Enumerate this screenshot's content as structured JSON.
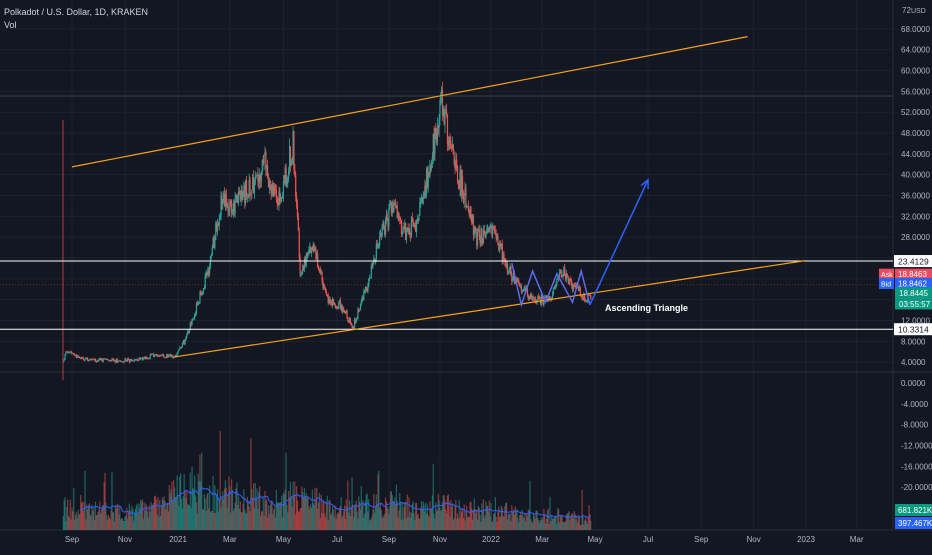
{
  "header": {
    "symbol_line": "Polkadot / U.S. Dollar, 1D, KRAKEN",
    "volume_label": "Vol"
  },
  "colors": {
    "background": "#131722",
    "grid": "#1e2230",
    "axis_text": "#b2b5be",
    "up": "#26a69a",
    "down": "#ef5350",
    "trendline": "#f7a21b",
    "projection": "#2962ff",
    "pattern": "#5b6cf0",
    "level_line": "#ffffff",
    "volume_ma": "#2962ff"
  },
  "chart_data": {
    "type": "candlestick",
    "currency": "USD",
    "price_axis": {
      "ticks": [
        "68.0000",
        "64.0000",
        "60.0000",
        "56.0000",
        "52.0000",
        "48.0000",
        "44.0000",
        "40.0000",
        "36.0000",
        "32.0000",
        "28.0000",
        "12.0000",
        "8.0000",
        "4.0000",
        "0.0000",
        "-4.0000",
        "-8.0000",
        "-12.0000",
        "-16.0000",
        "-20.0000"
      ],
      "top_label": "72",
      "currency_label": "USD",
      "ylim": [
        -24,
        72
      ]
    },
    "time_axis": {
      "ticks": [
        "Sep",
        "Nov",
        "2021",
        "Mar",
        "May",
        "Jul",
        "Sep",
        "Nov",
        "2022",
        "Mar",
        "May",
        "Jul",
        "Sep",
        "Nov",
        "2023",
        "Mar"
      ]
    },
    "price_path": [
      [
        "2020-08-22",
        4.0
      ],
      [
        "2020-08-25",
        6.1
      ],
      [
        "2020-09-05",
        5.2
      ],
      [
        "2020-09-20",
        4.5
      ],
      [
        "2020-10-15",
        4.3
      ],
      [
        "2020-11-10",
        4.3
      ],
      [
        "2020-12-05",
        5.3
      ],
      [
        "2020-12-28",
        5.0
      ],
      [
        "2021-01-10",
        8.5
      ],
      [
        "2021-01-25",
        16.0
      ],
      [
        "2021-02-05",
        22.0
      ],
      [
        "2021-02-20",
        35.0
      ],
      [
        "2021-03-05",
        34.0
      ],
      [
        "2021-03-25",
        38.0
      ],
      [
        "2021-04-10",
        42.0
      ],
      [
        "2021-04-25",
        34.0
      ],
      [
        "2021-05-12",
        46.0
      ],
      [
        "2021-05-20",
        22.0
      ],
      [
        "2021-06-05",
        26.0
      ],
      [
        "2021-06-20",
        16.0
      ],
      [
        "2021-07-05",
        15.0
      ],
      [
        "2021-07-20",
        11.0
      ],
      [
        "2021-08-05",
        18.0
      ],
      [
        "2021-08-20",
        27.0
      ],
      [
        "2021-09-05",
        34.0
      ],
      [
        "2021-09-20",
        29.0
      ],
      [
        "2021-10-05",
        31.0
      ],
      [
        "2021-10-20",
        42.0
      ],
      [
        "2021-11-04",
        54.0
      ],
      [
        "2021-11-15",
        44.0
      ],
      [
        "2021-11-30",
        36.0
      ],
      [
        "2021-12-15",
        28.0
      ],
      [
        "2022-01-05",
        29.0
      ],
      [
        "2022-01-20",
        22.0
      ],
      [
        "2022-02-05",
        18.0
      ],
      [
        "2022-02-20",
        16.0
      ],
      [
        "2022-03-10",
        16.0
      ],
      [
        "2022-03-25",
        22.0
      ],
      [
        "2022-04-05",
        19.0
      ],
      [
        "2022-04-20",
        16.5
      ]
    ],
    "volume_path": [
      [
        "2020-09-01",
        0.45
      ],
      [
        "2020-11-01",
        0.35
      ],
      [
        "2020-12-15",
        0.5
      ],
      [
        "2021-01-10",
        0.9
      ],
      [
        "2021-02-20",
        0.75
      ],
      [
        "2021-04-15",
        0.6
      ],
      [
        "2021-05-20",
        0.7
      ],
      [
        "2021-07-01",
        0.45
      ],
      [
        "2021-08-10",
        0.5
      ],
      [
        "2021-09-05",
        0.55
      ],
      [
        "2021-10-01",
        0.45
      ],
      [
        "2021-11-10",
        0.5
      ],
      [
        "2022-01-01",
        0.4
      ],
      [
        "2022-03-01",
        0.3
      ],
      [
        "2022-04-20",
        0.25
      ]
    ],
    "horizontal_levels": [
      {
        "price": 23.4129,
        "label": "23.4129"
      },
      {
        "price": 10.3314,
        "label": "10.3314"
      }
    ],
    "upper_channel_line": [
      [
        "2020-09-01",
        41.5
      ],
      [
        "2022-10-25",
        66.5
      ]
    ],
    "lower_channel_line": [
      [
        "2020-12-28",
        5.0
      ],
      [
        "2022-12-31",
        23.5
      ]
    ],
    "pattern_zigzag": [
      [
        "2022-01-25",
        23.0
      ],
      [
        "2022-02-05",
        15.0
      ],
      [
        "2022-02-18",
        21.5
      ],
      [
        "2022-03-05",
        15.5
      ],
      [
        "2022-03-18",
        21.0
      ],
      [
        "2022-04-05",
        15.5
      ],
      [
        "2022-04-15",
        21.5
      ],
      [
        "2022-04-25",
        15.0
      ]
    ],
    "projection_line": [
      [
        "2022-04-25",
        15.0
      ],
      [
        "2022-07-01",
        39.0
      ]
    ],
    "pattern_label": "Ascending Triangle",
    "price_labels": {
      "ask_tag": "Ask",
      "ask": "18.8463",
      "bid_tag": "Bid",
      "bid": "18.8462",
      "last": "18.8445",
      "countdown": "03:55:57"
    },
    "volume_labels": {
      "volume": "681.821K",
      "volume_ma": "397.467K"
    },
    "grid": true
  }
}
